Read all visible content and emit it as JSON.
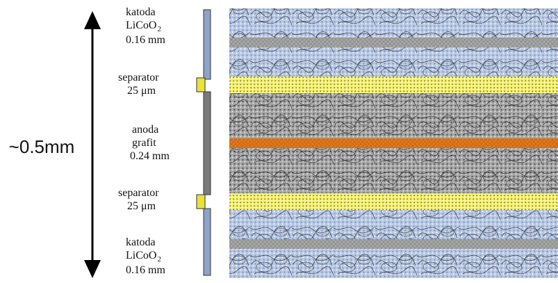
{
  "dimension": {
    "label": "~0.5mm"
  },
  "layers": [
    {
      "name": "katoda",
      "material": "LiCoO",
      "subscript": "2",
      "thickness": "0.16 mm"
    },
    {
      "name": "separator",
      "thickness": "25 μm"
    },
    {
      "name": "anoda",
      "material": "grafit",
      "thickness": "0.24 mm"
    },
    {
      "name": "separator",
      "thickness": "25 μm"
    },
    {
      "name": "katoda",
      "material": "LiCoO",
      "subscript": "2",
      "thickness": "0.16 mm"
    }
  ],
  "colors": {
    "cathode_band": "#8fa3c8",
    "cathode_collector": "#9a9a9a",
    "separator": "#e8e23a",
    "anode": "#7a7a7a",
    "anode_collector": "#e07a1a",
    "arrow": "#000000"
  }
}
